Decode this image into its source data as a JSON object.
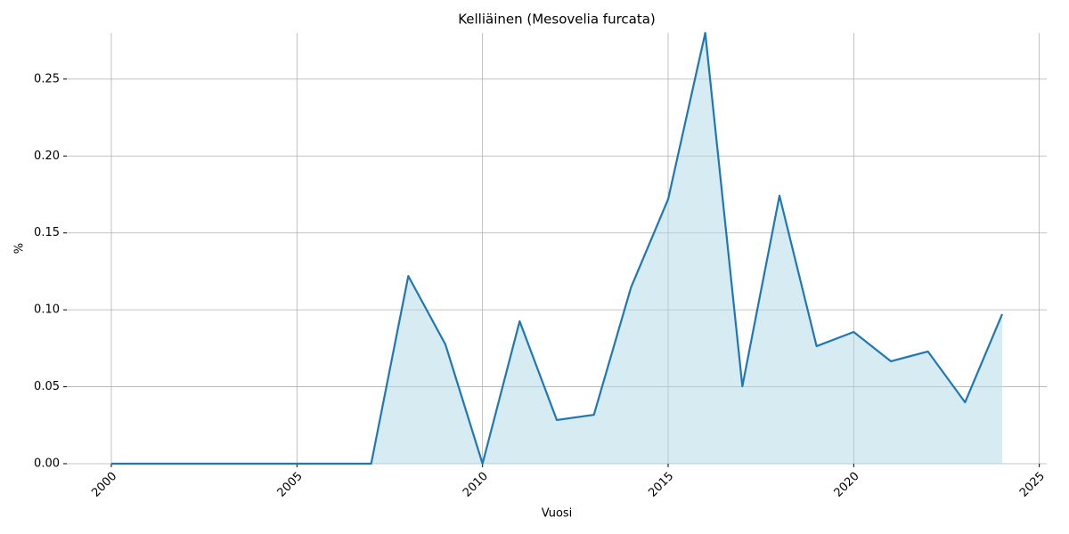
{
  "chart_data": {
    "type": "line",
    "title": "Kelliäinen (Mesovelia furcata)",
    "x_label": "Vuosi",
    "y_label": "%",
    "x": [
      2000,
      2001,
      2002,
      2003,
      2004,
      2005,
      2006,
      2007,
      2008,
      2009,
      2010,
      2011,
      2012,
      2013,
      2014,
      2015,
      2016,
      2017,
      2018,
      2019,
      2020,
      2021,
      2022,
      2023,
      2024
    ],
    "series": [
      {
        "name": "Kelliäinen",
        "color": "#1f77b4",
        "fill": "#add8e6",
        "values": [
          0,
          0,
          0,
          0,
          0,
          0,
          0,
          0,
          0.122,
          0.0775,
          0,
          0.0926,
          0.0284,
          0.0318,
          0.1146,
          0.1719,
          0.28,
          0.0503,
          0.1742,
          0.0764,
          0.0856,
          0.0666,
          0.0729,
          0.0399,
          0.0972
        ]
      }
    ],
    "xlim": [
      1998.8,
      2025.2
    ],
    "ylim": [
      0,
      0.28
    ],
    "xticks": [
      2000,
      2005,
      2010,
      2015,
      2020,
      2025
    ],
    "yticks": [
      {
        "value": 0,
        "label": "0.00"
      },
      {
        "value": 0.05,
        "label": "0.05"
      },
      {
        "value": 0.1,
        "label": "0.10"
      },
      {
        "value": 0.15,
        "label": "0.15"
      },
      {
        "value": 0.2,
        "label": "0.20"
      },
      {
        "value": 0.25,
        "label": "0.25"
      }
    ],
    "grid": true
  }
}
